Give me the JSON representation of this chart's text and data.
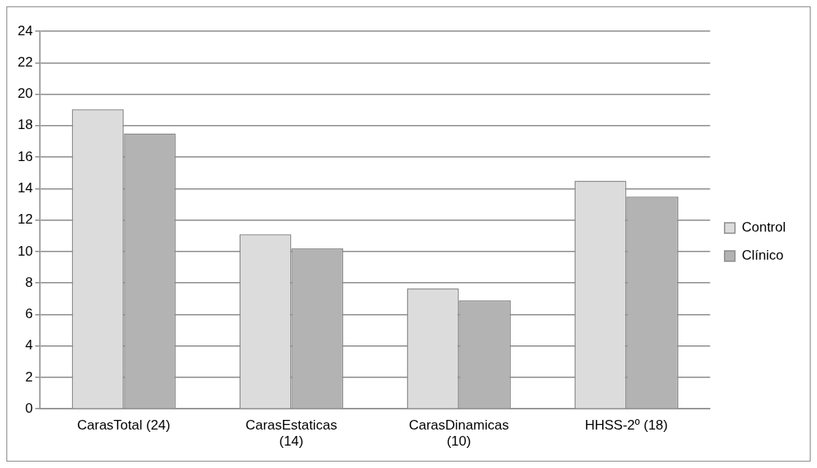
{
  "chart_data": {
    "type": "bar",
    "categories": [
      "CarasTotal (24)",
      "CarasEstaticas (14)",
      "CarasDinamicas (10)",
      "HHSS-2º (18)"
    ],
    "series": [
      {
        "name": "Control",
        "color": "#dcdcdc",
        "values": [
          19.05,
          11.1,
          7.65,
          14.5
        ]
      },
      {
        "name": "Clínico",
        "color": "#b3b3b3",
        "values": [
          17.5,
          10.2,
          6.9,
          13.5
        ]
      }
    ],
    "ylim": [
      0,
      24
    ],
    "yticks": [
      0,
      2,
      4,
      6,
      8,
      10,
      12,
      14,
      16,
      18,
      20,
      22,
      24
    ],
    "grid": "y",
    "legend": "right"
  }
}
